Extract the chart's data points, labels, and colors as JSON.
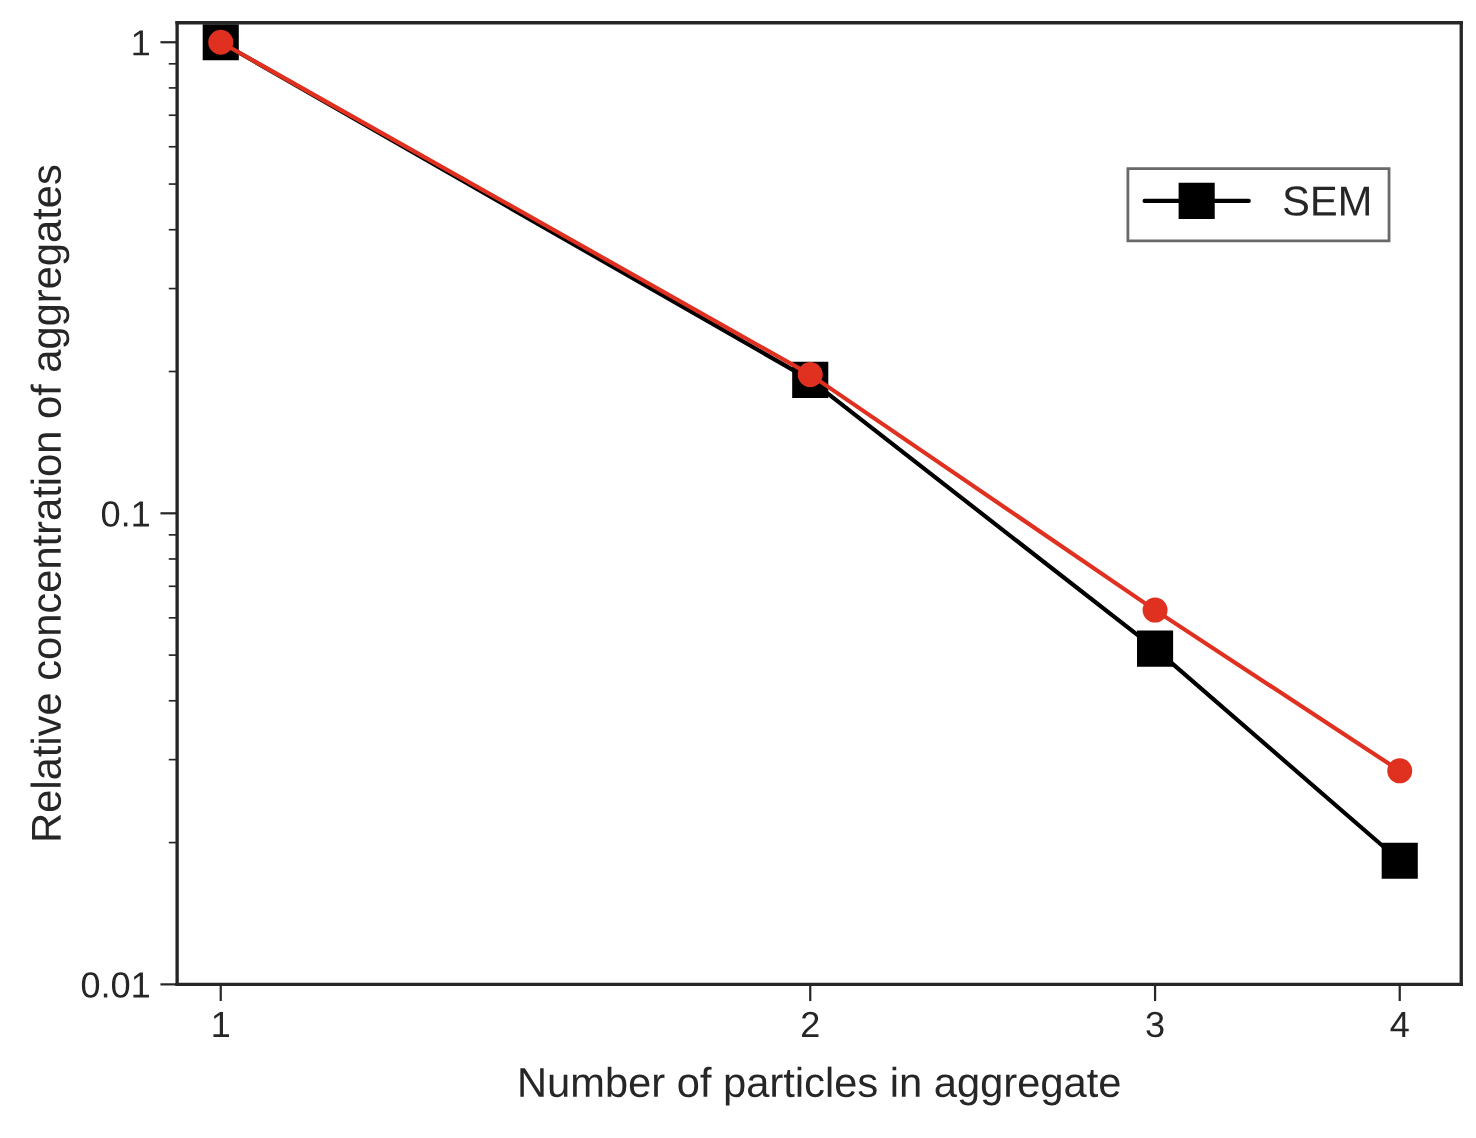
{
  "chart_data": {
    "type": "line",
    "xlabel": "Number of particles in aggregate",
    "ylabel": "Relative concentration of aggregates",
    "x": [
      1,
      2,
      3,
      4
    ],
    "series": [
      {
        "name": "SEM",
        "color": "#000000",
        "marker": "square",
        "values": [
          1,
          0.192,
          0.0516,
          0.0183
        ]
      },
      {
        "color": "#e03020",
        "marker": "circle",
        "values": [
          1,
          0.197,
          0.0623,
          0.0284
        ]
      }
    ],
    "log": "xy",
    "xlim": [
      0.95,
      4.3
    ],
    "ylim": [
      0.01,
      1.1
    ],
    "xticks": [
      1,
      2,
      3,
      4
    ],
    "yticks": [
      {
        "value": 0.01,
        "label": "0.01"
      },
      {
        "value": 0.1,
        "label": "0.1"
      },
      {
        "value": 1,
        "label": "1"
      }
    ],
    "grid": false,
    "legend": "top right",
    "line_style": "solid"
  }
}
